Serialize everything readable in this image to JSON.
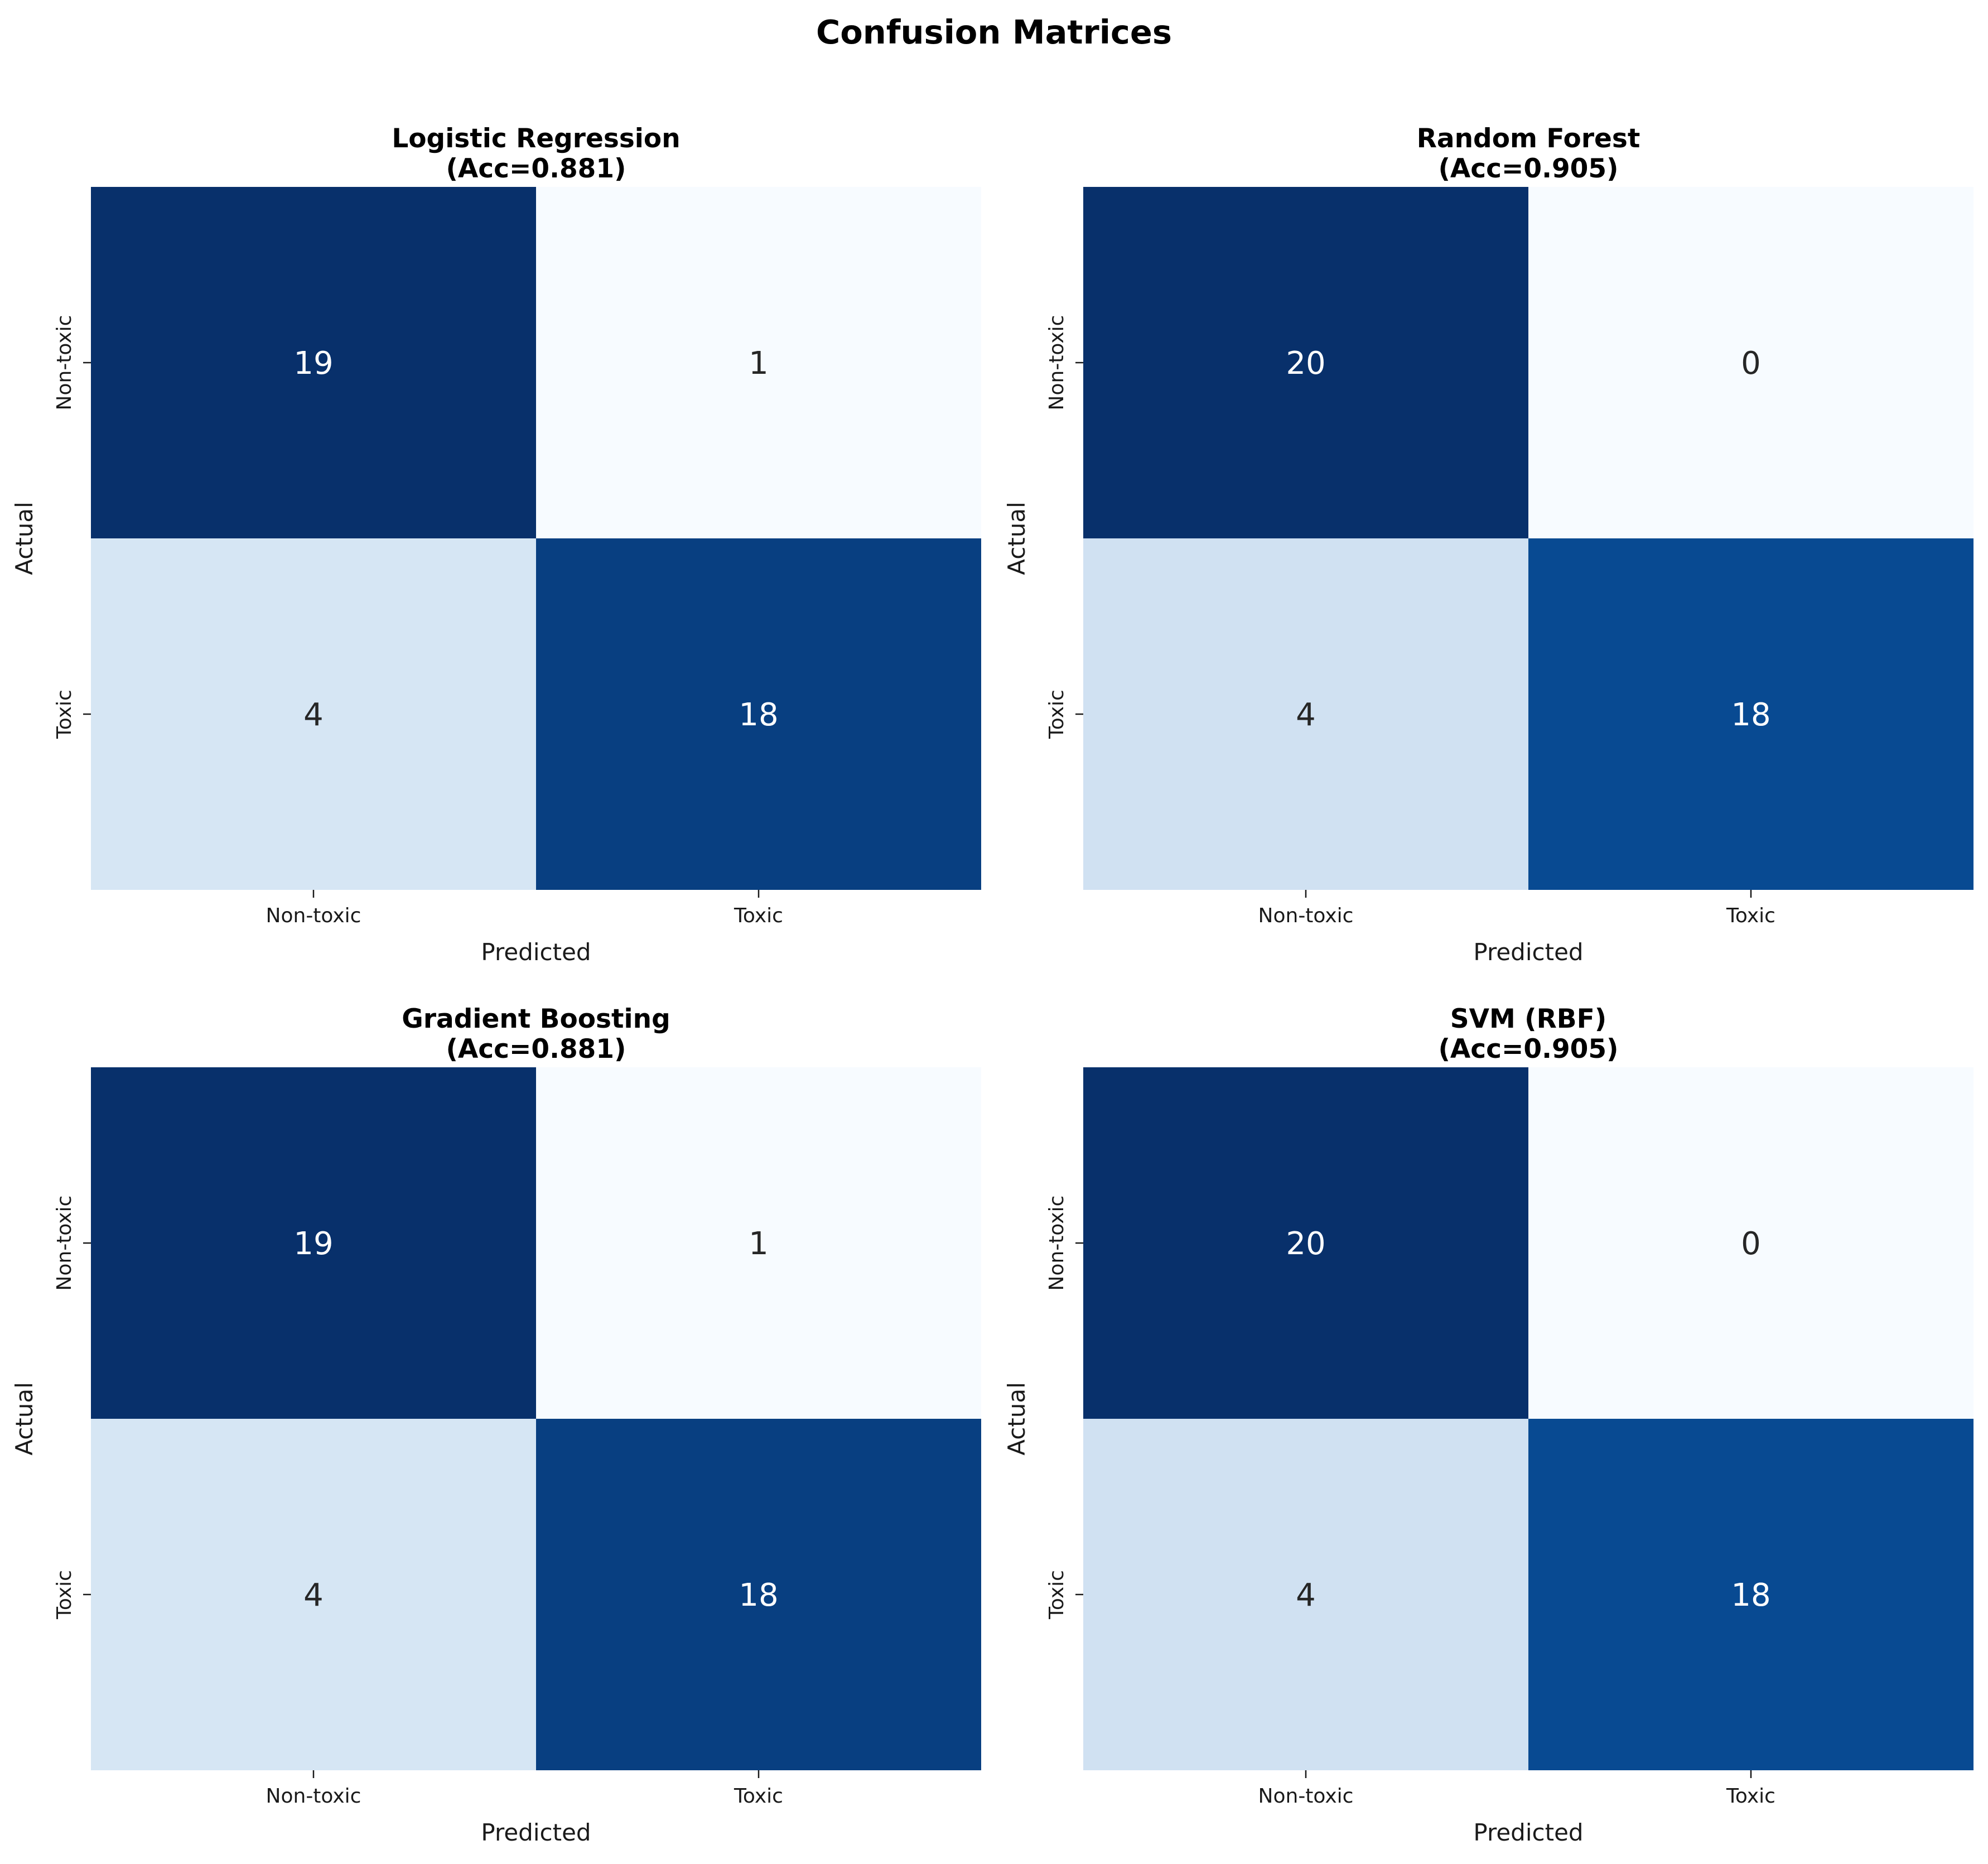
{
  "figure": {
    "title": "Confusion Matrices"
  },
  "chart_data": [
    {
      "type": "heatmap",
      "title": "Logistic Regression",
      "subtitle": "(Acc=0.881)",
      "xlabel": "Predicted",
      "ylabel": "Actual",
      "x_categories": [
        "Non-toxic",
        "Toxic"
      ],
      "y_categories": [
        "Non-toxic",
        "Toxic"
      ],
      "matrix": [
        [
          19,
          1
        ],
        [
          4,
          18
        ]
      ],
      "colormap": "Blues",
      "colorbar": false
    },
    {
      "type": "heatmap",
      "title": "Random Forest",
      "subtitle": "(Acc=0.905)",
      "xlabel": "Predicted",
      "ylabel": "Actual",
      "x_categories": [
        "Non-toxic",
        "Toxic"
      ],
      "y_categories": [
        "Non-toxic",
        "Toxic"
      ],
      "matrix": [
        [
          20,
          0
        ],
        [
          4,
          18
        ]
      ],
      "colormap": "Blues",
      "colorbar": false
    },
    {
      "type": "heatmap",
      "title": "Gradient Boosting",
      "subtitle": "(Acc=0.881)",
      "xlabel": "Predicted",
      "ylabel": "Actual",
      "x_categories": [
        "Non-toxic",
        "Toxic"
      ],
      "y_categories": [
        "Non-toxic",
        "Toxic"
      ],
      "matrix": [
        [
          19,
          1
        ],
        [
          4,
          18
        ]
      ],
      "colormap": "Blues",
      "colorbar": false
    },
    {
      "type": "heatmap",
      "title": "SVM (RBF)",
      "subtitle": "(Acc=0.905)",
      "xlabel": "Predicted",
      "ylabel": "Actual",
      "x_categories": [
        "Non-toxic",
        "Toxic"
      ],
      "y_categories": [
        "Non-toxic",
        "Toxic"
      ],
      "matrix": [
        [
          20,
          0
        ],
        [
          4,
          18
        ]
      ],
      "colormap": "Blues",
      "colorbar": false
    }
  ]
}
